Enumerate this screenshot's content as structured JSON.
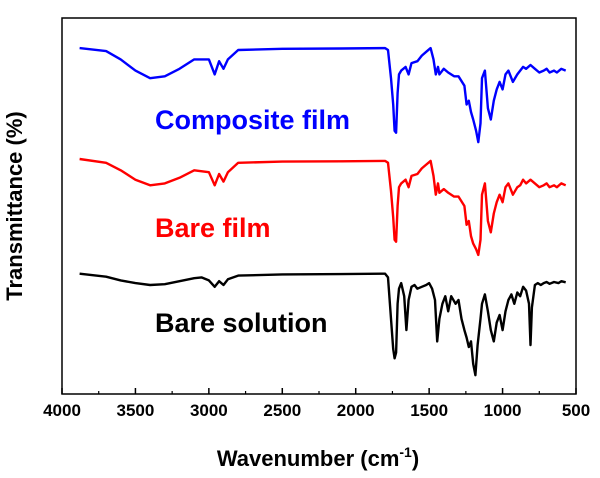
{
  "chart_data": {
    "type": "line",
    "title": "",
    "xlabel": "Wavenumber (cm",
    "xlabel_sup": "-1",
    "xlabel_close": ")",
    "ylabel": "Transmittance (%)",
    "xlim": [
      4000,
      500
    ],
    "x_reversed": true,
    "y_ticks_shown": false,
    "ylim": [
      0,
      100
    ],
    "grid": false,
    "legend": "none",
    "x_ticks": [
      4000,
      3500,
      3000,
      2500,
      2000,
      1500,
      1000,
      500
    ],
    "x_tick_labels": [
      "4000",
      "3500",
      "3000",
      "2500",
      "2000",
      "1500",
      "1000",
      "500"
    ],
    "series": [
      {
        "name": "Composite film",
        "color": "#0000ff",
        "points": [
          [
            3880,
            92
          ],
          [
            3700,
            91.2
          ],
          [
            3600,
            89
          ],
          [
            3500,
            86
          ],
          [
            3400,
            84
          ],
          [
            3300,
            84.5
          ],
          [
            3200,
            86.5
          ],
          [
            3100,
            89
          ],
          [
            3000,
            89
          ],
          [
            2960,
            85
          ],
          [
            2930,
            88.5
          ],
          [
            2900,
            86.5
          ],
          [
            2870,
            89
          ],
          [
            2800,
            91.5
          ],
          [
            2500,
            91.8
          ],
          [
            2100,
            91.9
          ],
          [
            1800,
            92
          ],
          [
            1780,
            91.5
          ],
          [
            1760,
            84
          ],
          [
            1745,
            77
          ],
          [
            1735,
            70
          ],
          [
            1725,
            69.5
          ],
          [
            1715,
            80
          ],
          [
            1705,
            85
          ],
          [
            1690,
            86
          ],
          [
            1660,
            87
          ],
          [
            1640,
            85
          ],
          [
            1620,
            88
          ],
          [
            1580,
            88.5
          ],
          [
            1550,
            90
          ],
          [
            1520,
            91
          ],
          [
            1490,
            92
          ],
          [
            1470,
            89
          ],
          [
            1455,
            85
          ],
          [
            1440,
            87
          ],
          [
            1430,
            85
          ],
          [
            1400,
            86.5
          ],
          [
            1370,
            85.5
          ],
          [
            1330,
            84.5
          ],
          [
            1300,
            84.5
          ],
          [
            1260,
            82
          ],
          [
            1245,
            77
          ],
          [
            1230,
            78
          ],
          [
            1215,
            75
          ],
          [
            1200,
            73
          ],
          [
            1180,
            70
          ],
          [
            1165,
            67
          ],
          [
            1150,
            72
          ],
          [
            1140,
            84
          ],
          [
            1120,
            86
          ],
          [
            1100,
            76
          ],
          [
            1080,
            73
          ],
          [
            1060,
            78
          ],
          [
            1040,
            81
          ],
          [
            1020,
            83
          ],
          [
            1000,
            81
          ],
          [
            980,
            85
          ],
          [
            960,
            86
          ],
          [
            930,
            83
          ],
          [
            900,
            85
          ],
          [
            880,
            86
          ],
          [
            860,
            87
          ],
          [
            840,
            86.5
          ],
          [
            810,
            87.5
          ],
          [
            780,
            86.5
          ],
          [
            750,
            85.5
          ],
          [
            720,
            86
          ],
          [
            700,
            86.5
          ],
          [
            680,
            85.5
          ],
          [
            650,
            86
          ],
          [
            630,
            85.5
          ],
          [
            600,
            86.5
          ],
          [
            570,
            86
          ]
        ]
      },
      {
        "name": "Bare film",
        "color": "#ff0000",
        "points": [
          [
            3880,
            62.5
          ],
          [
            3700,
            61.5
          ],
          [
            3600,
            59.5
          ],
          [
            3500,
            57
          ],
          [
            3400,
            55.5
          ],
          [
            3300,
            56
          ],
          [
            3200,
            57.5
          ],
          [
            3100,
            59.5
          ],
          [
            3000,
            59
          ],
          [
            2960,
            55.5
          ],
          [
            2930,
            58.5
          ],
          [
            2900,
            56.5
          ],
          [
            2870,
            59
          ],
          [
            2800,
            61.5
          ],
          [
            2500,
            61.8
          ],
          [
            2100,
            61.9
          ],
          [
            1800,
            62
          ],
          [
            1780,
            61.5
          ],
          [
            1760,
            54
          ],
          [
            1745,
            47
          ],
          [
            1735,
            41
          ],
          [
            1725,
            40.5
          ],
          [
            1715,
            50
          ],
          [
            1705,
            55
          ],
          [
            1690,
            56
          ],
          [
            1660,
            57
          ],
          [
            1640,
            55
          ],
          [
            1620,
            58
          ],
          [
            1580,
            58.5
          ],
          [
            1550,
            60
          ],
          [
            1520,
            61
          ],
          [
            1490,
            62
          ],
          [
            1470,
            58
          ],
          [
            1455,
            53
          ],
          [
            1440,
            56
          ],
          [
            1430,
            53.5
          ],
          [
            1400,
            54.5
          ],
          [
            1370,
            53.5
          ],
          [
            1330,
            52.5
          ],
          [
            1300,
            52.5
          ],
          [
            1260,
            50
          ],
          [
            1245,
            45
          ],
          [
            1230,
            46
          ],
          [
            1215,
            42
          ],
          [
            1200,
            40
          ],
          [
            1180,
            38.5
          ],
          [
            1165,
            37
          ],
          [
            1150,
            41
          ],
          [
            1140,
            53
          ],
          [
            1120,
            56
          ],
          [
            1100,
            46
          ],
          [
            1080,
            43
          ],
          [
            1060,
            48
          ],
          [
            1040,
            51
          ],
          [
            1020,
            53
          ],
          [
            1000,
            51
          ],
          [
            980,
            55
          ],
          [
            960,
            56
          ],
          [
            930,
            53
          ],
          [
            900,
            55
          ],
          [
            880,
            55.5
          ],
          [
            860,
            57
          ],
          [
            840,
            56
          ],
          [
            810,
            57
          ],
          [
            780,
            56
          ],
          [
            750,
            55
          ],
          [
            720,
            55.5
          ],
          [
            700,
            56
          ],
          [
            680,
            55
          ],
          [
            650,
            55.5
          ],
          [
            630,
            55
          ],
          [
            600,
            56
          ],
          [
            570,
            55.5
          ]
        ]
      },
      {
        "name": "Bare solution",
        "color": "#000000",
        "points": [
          [
            3880,
            32
          ],
          [
            3700,
            31.2
          ],
          [
            3600,
            30.2
          ],
          [
            3500,
            29.5
          ],
          [
            3400,
            29
          ],
          [
            3300,
            29.2
          ],
          [
            3200,
            30
          ],
          [
            3100,
            30.8
          ],
          [
            3050,
            31
          ],
          [
            3000,
            30.2
          ],
          [
            2960,
            28.5
          ],
          [
            2930,
            30
          ],
          [
            2900,
            29
          ],
          [
            2870,
            30.5
          ],
          [
            2800,
            31.5
          ],
          [
            2500,
            31.8
          ],
          [
            2100,
            31.9
          ],
          [
            1800,
            32
          ],
          [
            1780,
            31
          ],
          [
            1760,
            20
          ],
          [
            1745,
            12
          ],
          [
            1735,
            9.5
          ],
          [
            1725,
            11
          ],
          [
            1715,
            24
          ],
          [
            1705,
            28
          ],
          [
            1690,
            29.5
          ],
          [
            1670,
            26
          ],
          [
            1655,
            17
          ],
          [
            1640,
            25
          ],
          [
            1620,
            28.5
          ],
          [
            1600,
            29
          ],
          [
            1580,
            28
          ],
          [
            1550,
            28.5
          ],
          [
            1520,
            29
          ],
          [
            1500,
            29.5
          ],
          [
            1480,
            28
          ],
          [
            1460,
            25
          ],
          [
            1445,
            14
          ],
          [
            1430,
            20
          ],
          [
            1410,
            24
          ],
          [
            1390,
            26
          ],
          [
            1370,
            22
          ],
          [
            1350,
            26
          ],
          [
            1320,
            24
          ],
          [
            1300,
            25
          ],
          [
            1280,
            20
          ],
          [
            1260,
            17
          ],
          [
            1245,
            15
          ],
          [
            1230,
            12.5
          ],
          [
            1215,
            14
          ],
          [
            1200,
            8
          ],
          [
            1185,
            5
          ],
          [
            1170,
            13
          ],
          [
            1150,
            20
          ],
          [
            1140,
            24
          ],
          [
            1120,
            26.5
          ],
          [
            1100,
            22
          ],
          [
            1080,
            17
          ],
          [
            1060,
            14
          ],
          [
            1040,
            19
          ],
          [
            1020,
            21
          ],
          [
            1000,
            17
          ],
          [
            980,
            22
          ],
          [
            960,
            25
          ],
          [
            940,
            26.5
          ],
          [
            920,
            24
          ],
          [
            900,
            27
          ],
          [
            880,
            26
          ],
          [
            860,
            28.5
          ],
          [
            840,
            27.5
          ],
          [
            820,
            24
          ],
          [
            810,
            13
          ],
          [
            800,
            23
          ],
          [
            780,
            29
          ],
          [
            760,
            29.5
          ],
          [
            740,
            29
          ],
          [
            720,
            29.5
          ],
          [
            700,
            29.8
          ],
          [
            680,
            29.3
          ],
          [
            650,
            29.8
          ],
          [
            620,
            29.5
          ],
          [
            600,
            30
          ],
          [
            570,
            29.7
          ]
        ]
      }
    ]
  }
}
